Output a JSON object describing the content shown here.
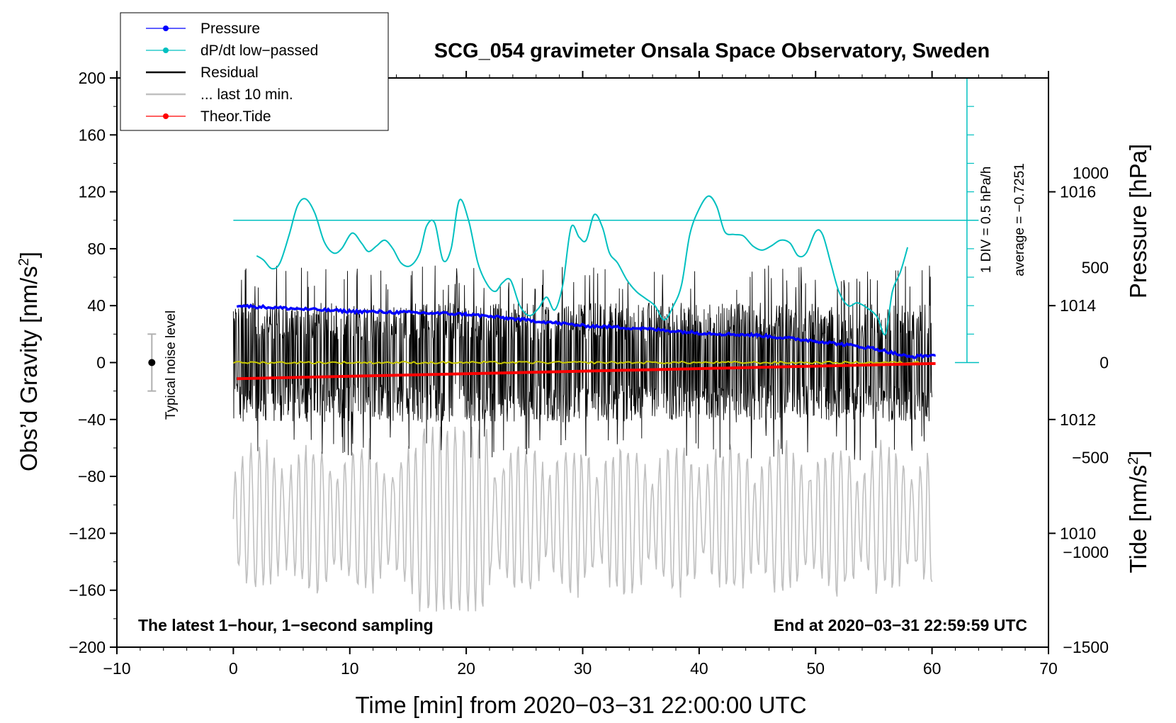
{
  "chart_data": {
    "type": "line",
    "title": "SCG_054 gravimeter Onsala Space Observatory, Sweden",
    "xlabel": "Time [min] from 2020−03−31 22:00:00 UTC",
    "ylabel_left": "Obs’d Gravity [nm/s",
    "ylabel_left_sup": "2",
    "ylabel_left_end": "]",
    "ylabel_right_pressure": "Pressure [hPa]",
    "ylabel_right_tide": "Tide [nm/s",
    "ylabel_right_tide_sup": "2",
    "ylabel_right_tide_end": "]",
    "xlim": [
      -10,
      70
    ],
    "ylim": [
      -200,
      200
    ],
    "x_ticks": [
      -10,
      0,
      10,
      20,
      30,
      40,
      50,
      60,
      70
    ],
    "x_tick_labels": [
      "−10",
      "0",
      "10",
      "20",
      "30",
      "40",
      "50",
      "60",
      "70"
    ],
    "y_ticks": [
      200,
      160,
      120,
      80,
      40,
      0,
      -40,
      -80,
      -120,
      -160,
      -200
    ],
    "y_tick_labels": [
      "200",
      "160",
      "120",
      "80",
      "40",
      "0",
      "−40",
      "−80",
      "−120",
      "−160",
      "−200"
    ],
    "pressure_ticks": [
      1016,
      1014,
      1012,
      1010
    ],
    "pressure_tick_labels": [
      "1016",
      "1014",
      "1012",
      "1010"
    ],
    "pressure_range": [
      1008,
      1018
    ],
    "tide_ticks": [
      1000,
      500,
      0,
      -500,
      -1000,
      -1500
    ],
    "tide_tick_labels": [
      "1000",
      "500",
      "0",
      "−500",
      "−1000",
      "−1500"
    ],
    "tide_range": [
      -1500,
      1500
    ],
    "legend": [
      {
        "label": "Pressure",
        "color": "#0000ff",
        "marker": "dot"
      },
      {
        "label": "dP/dt low−passed",
        "color": "#00c0c0",
        "marker": "dot"
      },
      {
        "label": "Residual",
        "color": "#000000",
        "marker": "none"
      },
      {
        "label": "... last 10 min.",
        "color": "#c0c0c0",
        "marker": "none"
      },
      {
        "label": "Theor.Tide",
        "color": "#ff0000",
        "marker": "dot"
      }
    ],
    "notes": {
      "bottom_left": "The latest 1−hour, 1−second sampling",
      "bottom_right": "End at 2020−03−31 22:59:59 UTC",
      "noise": "Typical noise level",
      "div": "1 DIV = 0.5 hPa/h",
      "average": "average = −0.7251"
    },
    "noise_bar": {
      "x": -7,
      "center": 0,
      "half_range": 20
    },
    "dpdt_baseline_y": 100,
    "div_scale": {
      "x": 63,
      "bottom": 0,
      "top": 200,
      "div": 20
    },
    "series": [
      {
        "name": "Pressure",
        "unit": "hPa",
        "color": "#0000ff",
        "x": [
          0.3,
          5,
          10,
          15,
          20,
          25,
          30,
          35,
          40,
          45,
          50,
          55,
          58,
          60.3
        ],
        "values": [
          1014.0,
          1013.95,
          1013.9,
          1013.88,
          1013.85,
          1013.75,
          1013.65,
          1013.6,
          1013.52,
          1013.48,
          1013.38,
          1013.25,
          1013.1,
          1013.13
        ]
      },
      {
        "name": "dP/dt low-passed",
        "unit": "nm/s2-scale",
        "color": "#00c0c0",
        "x": [
          2,
          2.6,
          3.3,
          4.0,
          4.8,
          5.5,
          6.2,
          7.0,
          7.8,
          8.6,
          9.3,
          10.2,
          11.0,
          11.6,
          12.3,
          13.0,
          13.7,
          14.4,
          15.2,
          16.0,
          16.6,
          17.3,
          18.0,
          18.7,
          19.4,
          20.2,
          21.0,
          21.8,
          22.5,
          23.1,
          23.8,
          24.6,
          25.4,
          26.2,
          26.9,
          27.6,
          28.3,
          29.0,
          29.7,
          30.3,
          31.0,
          31.7,
          32.3,
          33.0,
          33.8,
          34.6,
          35.4,
          36.2,
          37.0,
          37.8,
          38.5,
          39.2,
          40.0,
          40.8,
          41.5,
          42.2,
          43.0,
          43.8,
          44.6,
          45.4,
          46.2,
          47.0,
          47.8,
          48.5,
          49.2,
          50.0,
          50.6,
          51.3,
          52.0,
          52.8,
          53.6,
          54.5,
          55.3,
          56.0,
          56.6,
          57.3,
          57.9
        ],
        "values": [
          75,
          72,
          66,
          70,
          90,
          110,
          115,
          105,
          85,
          77,
          80,
          91,
          84,
          78,
          82,
          86,
          80,
          70,
          68,
          77,
          96,
          98,
          72,
          80,
          114,
          100,
          70,
          55,
          50,
          56,
          58,
          40,
          33,
          38,
          46,
          37,
          55,
          95,
          88,
          86,
          104,
          95,
          77,
          70,
          58,
          50,
          45,
          40,
          30,
          40,
          55,
          90,
          108,
          117,
          110,
          92,
          90,
          89,
          82,
          79,
          82,
          86,
          84,
          75,
          77,
          92,
          90,
          70,
          50,
          40,
          42,
          38,
          32,
          20,
          50,
          64,
          81
        ]
      },
      {
        "name": "Residual",
        "unit": "nm/s2",
        "color": "#000000",
        "x": [
          0,
          60
        ],
        "envelope": [
          -60,
          60
        ],
        "mean_line": {
          "color": "#c8c800",
          "values": [
            0,
            0
          ]
        }
      },
      {
        "name": "... last 10 min.",
        "unit": "nm/s2",
        "color": "#c0c0c0",
        "x": [
          0,
          60
        ],
        "envelope": [
          -175,
          -45
        ]
      },
      {
        "name": "Theor.Tide",
        "unit": "nm/s2",
        "color": "#ff0000",
        "x": [
          0.3,
          60.3
        ],
        "values": [
          -85,
          -5
        ]
      }
    ]
  }
}
